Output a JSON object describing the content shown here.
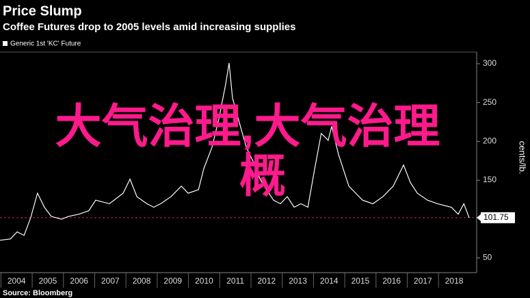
{
  "chart_data": {
    "type": "line",
    "title": "Price Slump",
    "subtitle": "Coffee Futures drop to 2005 levels amid increasing supplies",
    "y_label": "cents/lb.",
    "source": "Source: Bloomberg",
    "overlay": [
      "大气治理,大气治理",
      "概"
    ],
    "overlay_color": "#ff1a8c",
    "x": [
      2003.97,
      2004.3,
      2004.52,
      2004.74,
      2004.95,
      2005.17,
      2005.39,
      2005.61,
      2005.94,
      2006.16,
      2006.49,
      2006.81,
      2007.03,
      2007.47,
      2007.91,
      2008.13,
      2008.35,
      2008.67,
      2008.89,
      2009.11,
      2009.44,
      2009.77,
      2009.99,
      2010.32,
      2010.49,
      2010.75,
      2010.97,
      2011.19,
      2011.3,
      2011.41,
      2011.63,
      2011.85,
      2012.07,
      2012.29,
      2012.5,
      2012.72,
      2012.94,
      2013.16,
      2013.38,
      2013.6,
      2013.82,
      2014.04,
      2014.25,
      2014.47,
      2014.58,
      2014.8,
      2015.13,
      2015.35,
      2015.57,
      2015.9,
      2016.22,
      2016.55,
      2016.88,
      2017.1,
      2017.32,
      2017.65,
      2017.97,
      2018.41,
      2018.63,
      2018.81,
      2018.98
    ],
    "series": [
      {
        "name": "Generic 1st 'KC' Future",
        "color": "#ffffff",
        "values": [
          72.7,
          74.4,
          83.5,
          79,
          101.6,
          133.3,
          115.2,
          103.4,
          99.8,
          103.4,
          106.2,
          110.7,
          124.3,
          119.7,
          133.3,
          151.4,
          128.8,
          119.7,
          115.2,
          119.7,
          128.8,
          142.4,
          133.3,
          137.8,
          165,
          192.2,
          228.4,
          273.7,
          300.9,
          255.6,
          223.9,
          192.2,
          174.1,
          151.4,
          137.8,
          124.3,
          119.7,
          128.8,
          115.2,
          119.7,
          115.2,
          165,
          210.3,
          201.3,
          219.4,
          183.2,
          142.4,
          133.3,
          124.3,
          119.7,
          128.8,
          142.4,
          169.6,
          147,
          133.3,
          124.3,
          119.7,
          115.2,
          106.2,
          119.7,
          101.75
        ]
      }
    ],
    "xlim": [
      2003.97,
      2019.22
    ],
    "xticks": [
      2004,
      2005,
      2006,
      2007,
      2008,
      2009,
      2010,
      2011,
      2012,
      2013,
      2014,
      2015,
      2016,
      2017,
      2018
    ],
    "ylim": [
      31,
      315
    ],
    "yticks": [
      50,
      150,
      200,
      250,
      300
    ],
    "grid": false,
    "reference_color": "#c0283a"
  }
}
